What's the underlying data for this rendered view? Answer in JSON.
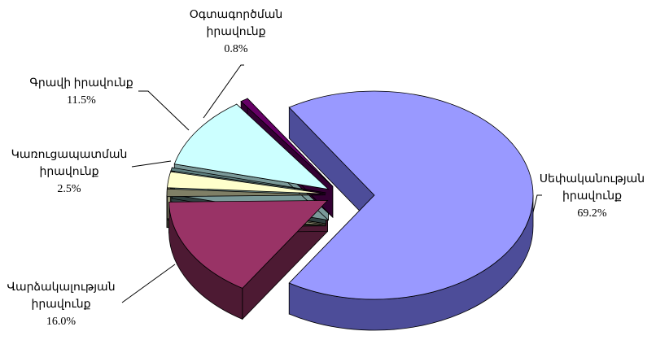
{
  "chart_data": {
    "type": "pie3d",
    "categories": [
      "Սեփականության իրավունք",
      "Վարձակալության իրավունք",
      null,
      "Կառուցապատման իրավունք",
      null,
      "Գրավի իրավունք",
      "Օգտագործման իրավունք"
    ],
    "values": [
      69.2,
      16.0,
      1.2,
      2.5,
      0.5,
      11.5,
      0.8
    ],
    "value_labels": [
      "69.2%",
      "16.0%",
      null,
      "2.5%",
      null,
      "11.5%",
      "0.8%"
    ],
    "colors": [
      "#9999ff",
      "#993366",
      "#7f7f66",
      "#ffffcc",
      "#5f8080",
      "#ccffff",
      "#660066"
    ],
    "side_colors": [
      "#4d4d99",
      "#4d1a33",
      "#404033",
      "#99997a",
      "#304040",
      "#7a9999",
      "#330033"
    ]
  }
}
